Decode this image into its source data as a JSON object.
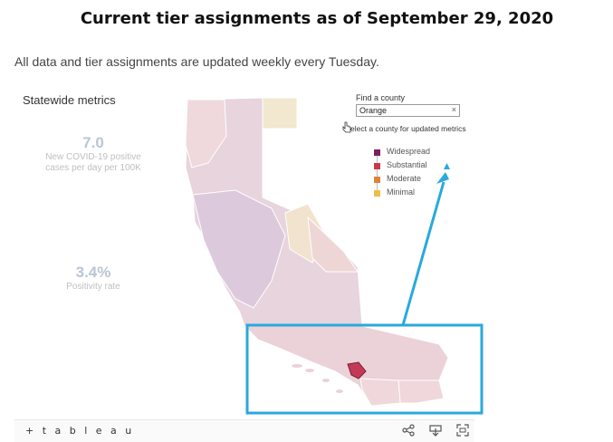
{
  "page": {
    "heading": "Current tier assignments as of September 29, 2020",
    "subtitle": "All data and tier assignments are updated weekly every Tuesday."
  },
  "dashboard": {
    "statewide_title": "Statewide metrics",
    "metric_cases_value": "7.0",
    "metric_cases_label_line1": "New COVID-19 positive",
    "metric_cases_label_line2": "cases per day per 100K",
    "metric_positivity_value": "3.4%",
    "metric_positivity_label": "Positivity rate",
    "find_county_label": "Find a county",
    "county_search_value": "Orange",
    "clear_symbol": "×",
    "select_county_message": "elect a county for updated metrics",
    "legend": [
      {
        "label": "Widespread",
        "color": "#7b1f5e"
      },
      {
        "label": "Substantial",
        "color": "#c8384f"
      },
      {
        "label": "Moderate",
        "color": "#e0813c"
      },
      {
        "label": "Minimal",
        "color": "#e8c04a"
      }
    ],
    "highlighted_county": "Orange",
    "highlight_color": "#29a9dc"
  },
  "toolbar": {
    "logo_text": "+ t a b l e a u",
    "icons": [
      "share-icon",
      "download-icon",
      "fullscreen-icon"
    ]
  }
}
